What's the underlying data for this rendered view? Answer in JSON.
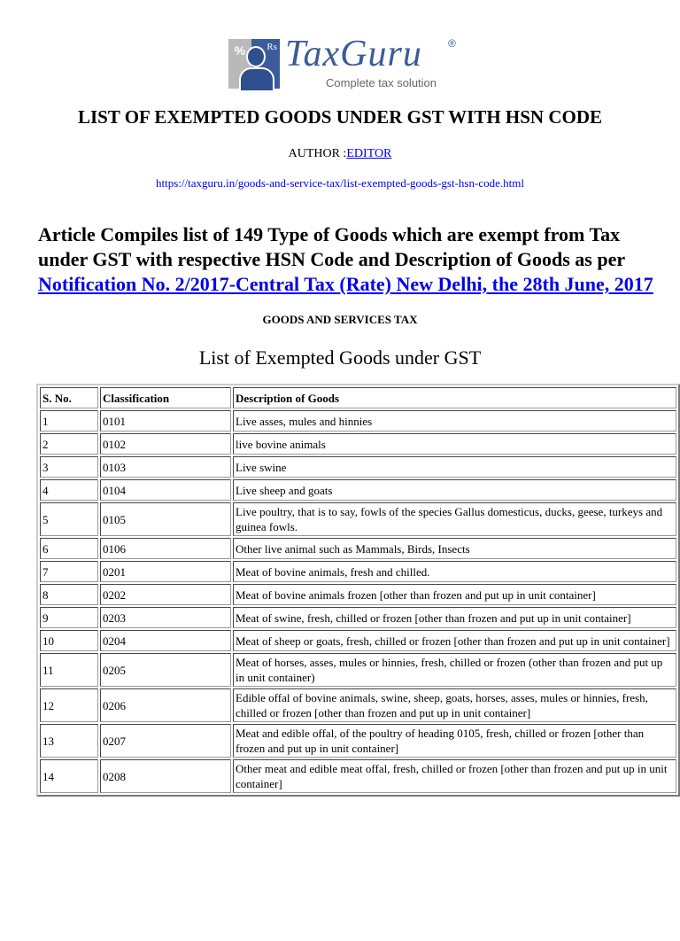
{
  "logo": {
    "brand": "TaxGuru",
    "tagline": "Complete tax solution",
    "icon_symbols": "% Rs",
    "registered": "®"
  },
  "title": "LIST OF EXEMPTED GOODS UNDER GST WITH HSN CODE",
  "author": {
    "label": "AUTHOR :",
    "name": "EDITOR"
  },
  "url": "https://taxguru.in/goods-and-service-tax/list-exempted-goods-gst-hsn-code.html",
  "intro": {
    "text": "Article Compiles list of 149 Type of Goods which are exempt from Tax under GST with respective HSN Code and Description of Goods as per ",
    "link": "Notification No. 2/2017-Central Tax (Rate) New Delhi, the 28th June, 2017"
  },
  "section": "GOODS AND SERVICES TAX",
  "list_title": "List of Exempted Goods under GST",
  "table": {
    "headers": [
      "S. No.",
      "Classification",
      "Description of Goods"
    ],
    "rows": [
      [
        "1",
        "0101",
        "Live asses, mules and hinnies"
      ],
      [
        "2",
        "0102",
        "live bovine animals"
      ],
      [
        "3",
        "0103",
        "Live swine"
      ],
      [
        "4",
        "0104",
        "Live sheep and goats"
      ],
      [
        "5",
        "0105",
        "Live poultry, that is to say, fowls of the species Gallus domesticus, ducks, geese, turkeys and guinea fowls."
      ],
      [
        "6",
        "0106",
        "Other live animal such as Mammals, Birds, Insects"
      ],
      [
        "7",
        "0201",
        "Meat of bovine animals, fresh and chilled."
      ],
      [
        "8",
        "0202",
        "Meat of bovine animals frozen [other than frozen and put up in unit container]"
      ],
      [
        "9",
        "0203",
        "Meat of swine, fresh, chilled or frozen [other than frozen and put up in unit container]"
      ],
      [
        "10",
        "0204",
        "Meat of sheep or goats, fresh, chilled or frozen [other than frozen and put up in unit container]"
      ],
      [
        "11",
        "0205",
        "Meat of horses, asses, mules or hinnies, fresh, chilled or frozen (other than frozen and put up in unit container)"
      ],
      [
        "12",
        "0206",
        "Edible offal of bovine animals, swine, sheep, goats, horses, asses, mules or hinnies, fresh, chilled or frozen [other than frozen and put up in unit container]"
      ],
      [
        "13",
        "0207",
        "Meat and edible offal, of the poultry of heading 0105, fresh, chilled or frozen [other than frozen and put up in unit container]"
      ],
      [
        "14",
        "0208",
        "Other meat and edible meat offal, fresh, chilled or frozen [other than frozen and put up in unit container]"
      ]
    ]
  }
}
